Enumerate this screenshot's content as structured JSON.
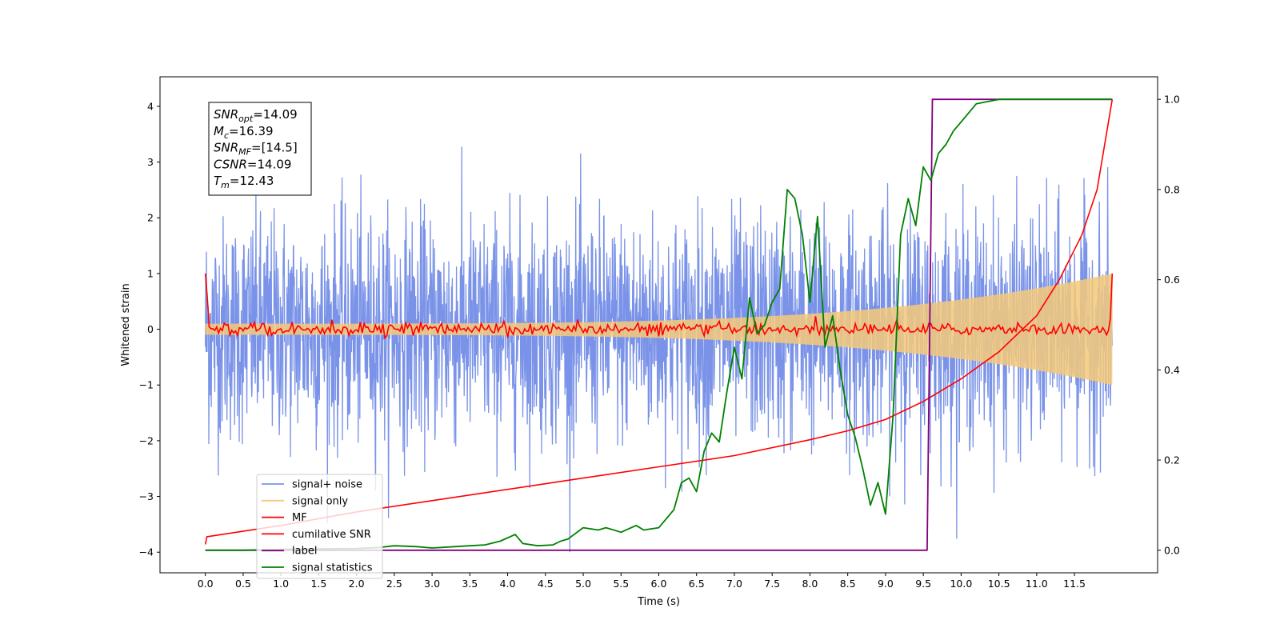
{
  "chart_data": {
    "type": "line",
    "xlabel": "Time (s)",
    "ylabel": "Whitened strain",
    "xlim": [
      -0.6,
      12.6
    ],
    "ylim_left": [
      -4.37,
      4.53
    ],
    "ylim_right": [
      -0.05,
      1.05
    ],
    "x_ticks": [
      "0.0",
      "0.5",
      "1.0",
      "1.5",
      "2.0",
      "2.5",
      "3.0",
      "3.5",
      "4.0",
      "4.5",
      "5.0",
      "5.5",
      "6.0",
      "6.5",
      "7.0",
      "7.5",
      "8.0",
      "8.5",
      "9.0",
      "9.5",
      "10.0",
      "10.5",
      "11.0",
      "11.5"
    ],
    "y_left_ticks": [
      "−4",
      "−3",
      "−2",
      "−1",
      "0",
      "1",
      "2",
      "3",
      "4"
    ],
    "y_right_ticks": [
      "0.0",
      "0.2",
      "0.4",
      "0.6",
      "0.8",
      "1.0"
    ],
    "x_range": [
      0.0,
      12.0
    ],
    "info_box": {
      "lines": [
        {
          "var": "SNR",
          "sub": "opt",
          "value": "=14.09"
        },
        {
          "var": "M",
          "sub": "c",
          "value": "=16.39"
        },
        {
          "var": "SNR",
          "sub": "MF",
          "value": "=[14.5]"
        },
        {
          "var": "CSNR",
          "sub": "",
          "value": "=14.09"
        },
        {
          "var": "T",
          "sub": "m",
          "value": "=12.43"
        }
      ]
    },
    "legend": {
      "position": "lower-left",
      "entries": [
        {
          "name": "signal+ noise",
          "color": "#7a93e8"
        },
        {
          "name": "signal only",
          "color": "#f5c97a"
        },
        {
          "name": "MF",
          "color": "#ff0000"
        },
        {
          "name": "cumilative SNR",
          "color": "#ff0000"
        },
        {
          "name": "label",
          "color": "#800080"
        },
        {
          "name": "signal statistics",
          "color": "#008000"
        }
      ]
    },
    "series": [
      {
        "name": "signal+ noise",
        "axis": "left",
        "color": "#7a93e8",
        "kind": "noise",
        "sigma": 1.0,
        "t_end": 12.0
      },
      {
        "name": "signal only",
        "axis": "left",
        "color": "#f5c97a",
        "kind": "chirp",
        "amp_start": 0.1,
        "amp_end": 1.0,
        "t_end": 12.0
      },
      {
        "name": "MF",
        "axis": "left",
        "color": "#ff0000",
        "kind": "mf",
        "start_value": 1.0,
        "end_value": 1.0,
        "noise_sigma": 0.05
      },
      {
        "name": "cumilative SNR",
        "axis": "right",
        "color": "#ff0000",
        "x": [
          0,
          0.02,
          1,
          2,
          3,
          4,
          5,
          6,
          7,
          8,
          8.5,
          9,
          9.5,
          10,
          10.5,
          11,
          11.3,
          11.6,
          11.8,
          12
        ],
        "y": [
          0.013,
          0.03,
          0.055,
          0.085,
          0.11,
          0.135,
          0.16,
          0.185,
          0.21,
          0.245,
          0.265,
          0.29,
          0.33,
          0.38,
          0.44,
          0.52,
          0.6,
          0.7,
          0.8,
          1.0
        ]
      },
      {
        "name": "label",
        "axis": "right",
        "color": "#800080",
        "x": [
          0,
          9.55,
          9.62,
          12
        ],
        "y": [
          0.0,
          0.0,
          1.0,
          1.0
        ]
      },
      {
        "name": "signal statistics",
        "axis": "right",
        "color": "#008000",
        "x": [
          0,
          0.5,
          1,
          1.5,
          2,
          2.3,
          2.5,
          2.8,
          3.0,
          3.3,
          3.5,
          3.7,
          3.9,
          4.1,
          4.2,
          4.4,
          4.6,
          4.7,
          4.8,
          5.0,
          5.2,
          5.3,
          5.5,
          5.7,
          5.8,
          6.0,
          6.2,
          6.3,
          6.4,
          6.5,
          6.6,
          6.7,
          6.8,
          6.9,
          7.0,
          7.1,
          7.2,
          7.3,
          7.4,
          7.5,
          7.6,
          7.7,
          7.8,
          7.9,
          8.0,
          8.1,
          8.2,
          8.3,
          8.4,
          8.5,
          8.6,
          8.7,
          8.8,
          8.9,
          9.0,
          9.1,
          9.2,
          9.3,
          9.4,
          9.5,
          9.6,
          9.7,
          9.8,
          9.9,
          10.0,
          10.2,
          10.5,
          11.0,
          11.5,
          12.0
        ],
        "y": [
          0.0,
          0.0,
          0.002,
          0.003,
          0.004,
          0.006,
          0.01,
          0.008,
          0.005,
          0.008,
          0.01,
          0.012,
          0.02,
          0.035,
          0.015,
          0.01,
          0.012,
          0.02,
          0.025,
          0.05,
          0.045,
          0.05,
          0.04,
          0.055,
          0.045,
          0.05,
          0.09,
          0.15,
          0.16,
          0.13,
          0.22,
          0.26,
          0.24,
          0.35,
          0.45,
          0.38,
          0.56,
          0.48,
          0.5,
          0.55,
          0.58,
          0.8,
          0.78,
          0.7,
          0.55,
          0.74,
          0.45,
          0.52,
          0.4,
          0.3,
          0.25,
          0.18,
          0.1,
          0.15,
          0.08,
          0.3,
          0.7,
          0.78,
          0.72,
          0.85,
          0.82,
          0.88,
          0.9,
          0.93,
          0.95,
          0.99,
          1.0,
          1.0,
          1.0,
          1.0
        ]
      }
    ]
  }
}
